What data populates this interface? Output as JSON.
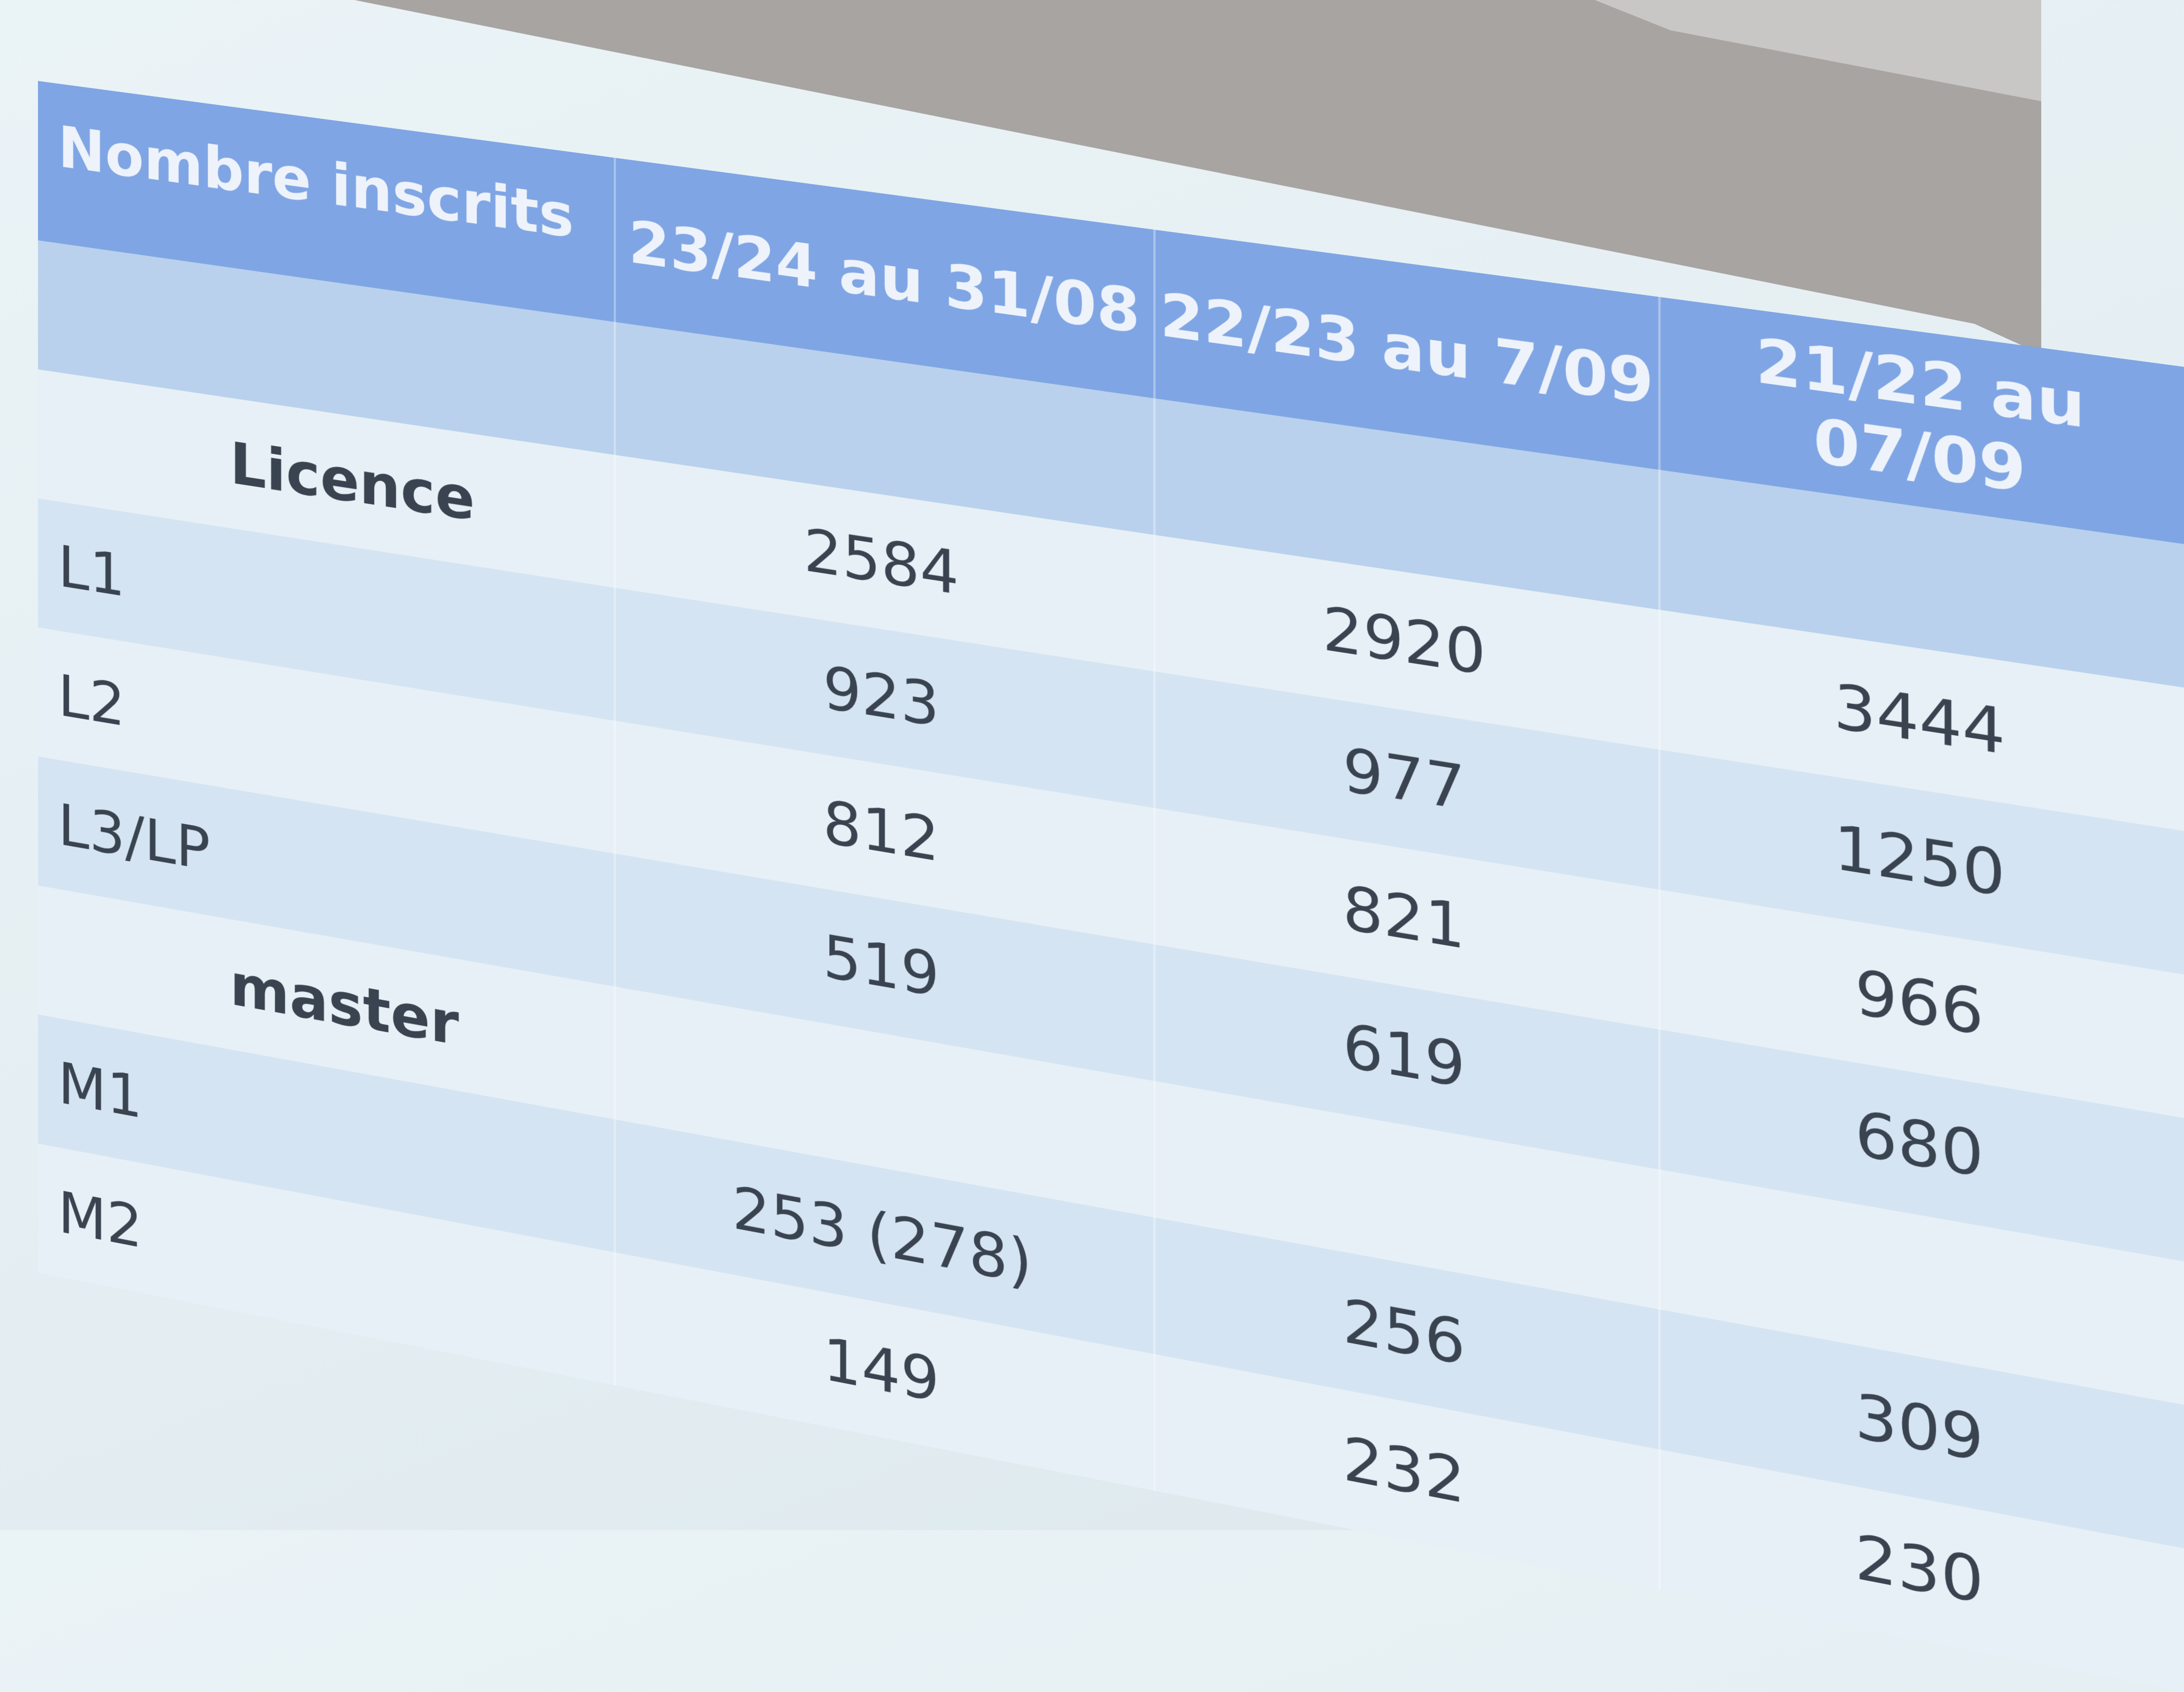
{
  "table": {
    "corner_header": "Nombre inscrits",
    "columns": [
      "23/24 au 31/08",
      "22/23 au 7/09",
      "21/22 au 07/09"
    ],
    "rows": [
      {
        "label": "Licence",
        "group": true,
        "values": [
          "2584",
          "2920",
          "3444"
        ]
      },
      {
        "label": "L1",
        "group": false,
        "values": [
          "923",
          "977",
          "1250"
        ]
      },
      {
        "label": "L2",
        "group": false,
        "values": [
          "812",
          "821",
          "966"
        ]
      },
      {
        "label": "L3/LP",
        "group": false,
        "values": [
          "519",
          "619",
          "680"
        ]
      },
      {
        "label": "master",
        "group": true,
        "values": [
          "",
          "",
          ""
        ]
      },
      {
        "label": "M1",
        "group": false,
        "values": [
          "253 (278)",
          "256",
          "309"
        ]
      },
      {
        "label": "M2",
        "group": false,
        "values": [
          "149",
          "232",
          "230"
        ]
      }
    ]
  },
  "colors": {
    "header": "#7fa5e4",
    "row_dark": "#d5e4f2",
    "row_light": "#e6f0f6",
    "wall": "#a9a5a2"
  }
}
